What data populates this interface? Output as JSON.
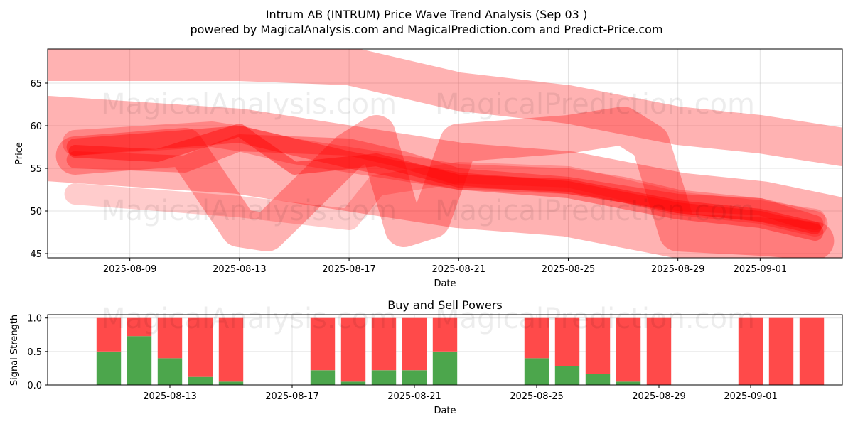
{
  "title_line1": "Intrum AB (INTRUM) Price Wave Trend Analysis (Sep 03 )",
  "title_line2": "powered by MagicalAnalysis.com and MagicalPrediction.com and Predict-Price.com",
  "watermarks": [
    "MagicalAnalysis.com",
    "MagicalPrediction.com"
  ],
  "colors": {
    "band": "#ff0000",
    "buy": "#4ca64c",
    "sell": "#ff4a4a"
  },
  "chart_data": [
    {
      "type": "area",
      "title": "",
      "xlabel": "Date",
      "ylabel": "Price",
      "xlim": [
        "2025-08-06",
        "2025-09-04"
      ],
      "ylim": [
        44.5,
        69
      ],
      "x_ticks": [
        "2025-08-09",
        "2025-08-13",
        "2025-08-17",
        "2025-08-21",
        "2025-08-25",
        "2025-08-29",
        "2025-09-01"
      ],
      "y_ticks": [
        45,
        50,
        55,
        60,
        65
      ],
      "grid": true,
      "series": [
        {
          "x": [
            "2025-08-06",
            "2025-08-10",
            "2025-08-13",
            "2025-08-17",
            "2025-08-21",
            "2025-08-25",
            "2025-08-29",
            "2025-09-01",
            "2025-09-04"
          ],
          "center": [
            67.5,
            67.5,
            67.5,
            67,
            64,
            62.5,
            60,
            59,
            57.5
          ],
          "width": 4.5,
          "opacity": 0.3
        },
        {
          "x": [
            "2025-08-06",
            "2025-08-13",
            "2025-08-17",
            "2025-08-21",
            "2025-08-25",
            "2025-08-29",
            "2025-09-01",
            "2025-09-04"
          ],
          "center": [
            58.5,
            57,
            55,
            53,
            52,
            49.5,
            48.5,
            46.5
          ],
          "width": 10,
          "opacity": 0.3
        },
        {
          "x": [
            "2025-08-07",
            "2025-08-11",
            "2025-08-13",
            "2025-08-14",
            "2025-08-17",
            "2025-08-18",
            "2025-08-19",
            "2025-08-20",
            "2025-08-21",
            "2025-08-25",
            "2025-08-27",
            "2025-08-28",
            "2025-08-29",
            "2025-09-01",
            "2025-09-03"
          ],
          "center": [
            56.5,
            57.5,
            48,
            47.5,
            57,
            59,
            48,
            49,
            58,
            59,
            60,
            58,
            47.5,
            47,
            46.5
          ],
          "width": 4.5,
          "opacity": 0.3
        },
        {
          "x": [
            "2025-08-07",
            "2025-08-12",
            "2025-08-13",
            "2025-08-15",
            "2025-08-17",
            "2025-08-21",
            "2025-08-25",
            "2025-08-27",
            "2025-08-29",
            "2025-09-01",
            "2025-09-03"
          ],
          "center": [
            58,
            59,
            58.5,
            57,
            56,
            54,
            53.5,
            52.5,
            51,
            50,
            48.5
          ],
          "width": 3,
          "opacity": 0.25
        },
        {
          "x": [
            "2025-08-07",
            "2025-08-13",
            "2025-08-17",
            "2025-08-21",
            "2025-08-25",
            "2025-08-29",
            "2025-09-01",
            "2025-09-03"
          ],
          "center": [
            57.5,
            59,
            56,
            53.5,
            52.5,
            50,
            49,
            47.5
          ],
          "width": 2,
          "opacity": 0.35
        },
        {
          "x": [
            "2025-08-07",
            "2025-08-10",
            "2025-08-13",
            "2025-08-15",
            "2025-08-18",
            "2025-08-21",
            "2025-08-25",
            "2025-08-29",
            "2025-09-01",
            "2025-09-03"
          ],
          "center": [
            57,
            56.5,
            59.5,
            55,
            56,
            53.5,
            53,
            50.5,
            49.5,
            48
          ],
          "width": 1.5,
          "opacity": 0.4
        },
        {
          "x": [
            "2025-08-07",
            "2025-08-13",
            "2025-08-17",
            "2025-08-18",
            "2025-08-21",
            "2025-08-25",
            "2025-08-29",
            "2025-09-01",
            "2025-09-03"
          ],
          "center": [
            52,
            50.5,
            49,
            53,
            54.5,
            54,
            51,
            50,
            49
          ],
          "width": 2.5,
          "opacity": 0.2
        },
        {
          "x": [
            "2025-08-07",
            "2025-08-11",
            "2025-08-13",
            "2025-08-17",
            "2025-08-19",
            "2025-08-21",
            "2025-08-25",
            "2025-08-29",
            "2025-09-01",
            "2025-09-03"
          ],
          "center": [
            56,
            55.5,
            58,
            57.5,
            56,
            54,
            53,
            51,
            50.5,
            48.5
          ],
          "width": 2,
          "opacity": 0.3
        }
      ]
    },
    {
      "type": "bar",
      "title": "Buy and Sell Powers",
      "xlabel": "Date",
      "ylabel": "Signal Strength",
      "xlim": [
        "2025-08-09",
        "2025-09-04"
      ],
      "ylim": [
        0,
        1.05
      ],
      "x_ticks": [
        "2025-08-13",
        "2025-08-17",
        "2025-08-21",
        "2025-08-25",
        "2025-08-29",
        "2025-09-01"
      ],
      "y_ticks": [
        0.0,
        0.5,
        1.0
      ],
      "grid": true,
      "categories": [
        "2025-08-11",
        "2025-08-12",
        "2025-08-13",
        "2025-08-14",
        "2025-08-15",
        "2025-08-18",
        "2025-08-19",
        "2025-08-20",
        "2025-08-21",
        "2025-08-22",
        "2025-08-25",
        "2025-08-26",
        "2025-08-27",
        "2025-08-28",
        "2025-08-29",
        "2025-09-01",
        "2025-09-02",
        "2025-09-03"
      ],
      "buy": [
        0.5,
        0.73,
        0.4,
        0.12,
        0.05,
        0.22,
        0.05,
        0.22,
        0.22,
        0.5,
        0.4,
        0.28,
        0.17,
        0.05,
        0.0,
        0.0,
        0.0,
        0.0
      ],
      "sell": [
        0.5,
        0.27,
        0.6,
        0.88,
        0.95,
        0.78,
        0.95,
        0.78,
        0.78,
        0.5,
        0.6,
        0.72,
        0.83,
        0.95,
        1.0,
        1.0,
        1.0,
        1.0
      ]
    }
  ]
}
